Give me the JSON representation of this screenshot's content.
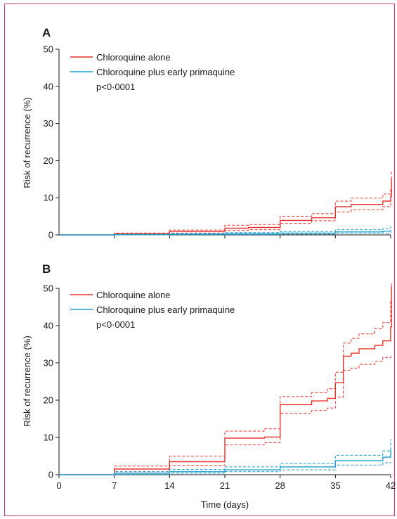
{
  "colors": {
    "frame": "#c9356e",
    "chloroquine_alone": "#e8322f",
    "chloroquine_primaquine": "#1a9fce",
    "axis": "#1a1a1a"
  },
  "chart_data": [
    {
      "type": "line",
      "panel_label": "A",
      "xlabel": "",
      "ylabel": "Risk of recurrence (%)",
      "xlim": [
        0,
        42
      ],
      "ylim": [
        0,
        50
      ],
      "xticks": [
        7,
        14,
        21,
        28,
        35,
        42
      ],
      "xtick_labels": [],
      "yticks": [
        0,
        10,
        20,
        30,
        40,
        50
      ],
      "ytick_labels": [
        "0",
        "10",
        "20",
        "30",
        "40",
        "50"
      ],
      "grid": false,
      "legend_position": "top-left",
      "annotation": "p<0·0001",
      "series": [
        {
          "name": "Chloroquine alone",
          "color": "#e8322f",
          "x": [
            0,
            7,
            14,
            21,
            24,
            28,
            32,
            35,
            37,
            41,
            42,
            42.1
          ],
          "y": [
            0,
            0.3,
            0.9,
            1.8,
            2.0,
            3.9,
            4.6,
            7.6,
            8.2,
            9.1,
            10.3,
            15.3
          ],
          "ci_lower": [
            0,
            0.1,
            0.5,
            1.2,
            1.4,
            3.1,
            3.8,
            6.2,
            6.8,
            7.6,
            8.5,
            8.5
          ],
          "ci_upper": [
            0,
            0.5,
            1.3,
            2.6,
            2.8,
            5.0,
            5.7,
            9.1,
            9.9,
            11.0,
            12.2,
            17.0
          ]
        },
        {
          "name": "Chloroquine plus early primaquine",
          "color": "#1a9fce",
          "x": [
            0,
            7,
            14,
            21,
            28,
            35,
            41,
            42
          ],
          "y": [
            0,
            0.05,
            0.15,
            0.3,
            0.5,
            0.8,
            1.0,
            1.3
          ],
          "ci_lower": [
            0,
            0,
            0.05,
            0.1,
            0.2,
            0.4,
            0.5,
            0.7
          ],
          "ci_upper": [
            0,
            0.15,
            0.35,
            0.6,
            0.9,
            1.4,
            1.7,
            2.3
          ]
        }
      ]
    },
    {
      "type": "line",
      "panel_label": "B",
      "xlabel": "Time (days)",
      "ylabel": "Risk of recurrence (%)",
      "xlim": [
        0,
        42
      ],
      "ylim": [
        0,
        50
      ],
      "xticks": [
        0,
        7,
        14,
        21,
        28,
        35,
        42
      ],
      "xtick_labels": [
        "0",
        "7",
        "14",
        "21",
        "28",
        "35",
        "42"
      ],
      "yticks": [
        0,
        10,
        20,
        30,
        40,
        50
      ],
      "ytick_labels": [
        "0",
        "10",
        "20",
        "30",
        "40",
        "50"
      ],
      "grid": false,
      "legend_position": "top-left",
      "annotation": "p<0·0001",
      "series": [
        {
          "name": "Chloroquine alone",
          "color": "#e8322f",
          "x": [
            0,
            7,
            14,
            21,
            26,
            28,
            32,
            34,
            35,
            36,
            37,
            38,
            40,
            41,
            42,
            42.1
          ],
          "y": [
            0,
            1.5,
            3.5,
            9.8,
            10.1,
            18.8,
            19.8,
            20.5,
            24.7,
            31.8,
            32.6,
            33.8,
            34.7,
            35.9,
            39.6,
            50.5
          ],
          "ci_lower": [
            0,
            0.8,
            2.5,
            8.0,
            8.6,
            16.5,
            17.2,
            17.9,
            20.8,
            28.0,
            28.6,
            29.6,
            30.4,
            31.4,
            32.2,
            32.2
          ],
          "ci_upper": [
            0,
            2.3,
            5.0,
            11.7,
            12.3,
            21.0,
            22.0,
            23.1,
            27.5,
            35.3,
            36.6,
            37.8,
            39.2,
            40.8,
            46.5,
            51.5
          ]
        },
        {
          "name": "Chloroquine plus early primaquine",
          "color": "#1a9fce",
          "x": [
            0,
            7,
            14,
            21,
            28,
            35,
            41,
            42
          ],
          "y": [
            0,
            0.4,
            0.8,
            1.3,
            2.1,
            3.8,
            4.7,
            6.8
          ],
          "ci_lower": [
            0,
            0.1,
            0.4,
            0.8,
            1.3,
            2.6,
            3.2,
            3.4
          ],
          "ci_upper": [
            0,
            0.8,
            1.4,
            2.1,
            3.0,
            5.2,
            6.4,
            9.6
          ]
        }
      ]
    }
  ]
}
